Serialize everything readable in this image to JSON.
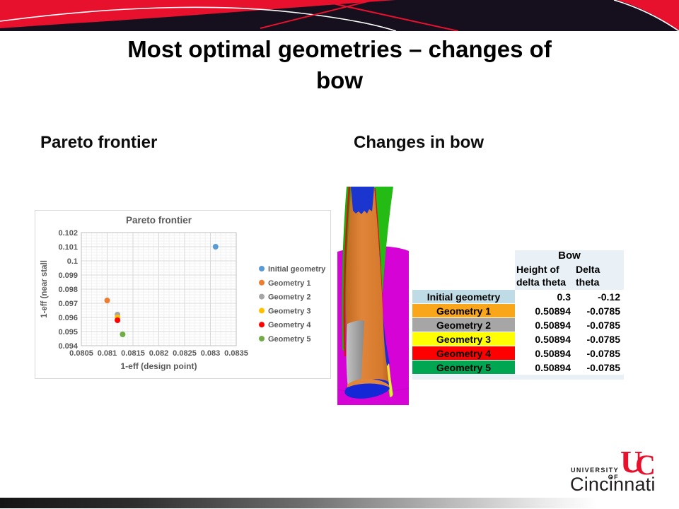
{
  "slide": {
    "title_lines": [
      "Most optimal geometries – changes of",
      "bow"
    ],
    "left_heading": "Pareto frontier",
    "right_heading": "Changes in bow"
  },
  "colors": {
    "banner_red": "#e8112d",
    "banner_black": "#16101e",
    "table_header_blue": "#e9f1f7",
    "magenta_background": "#d503d5",
    "blade_orange": "#dd7f2e"
  },
  "chart_data": {
    "type": "scatter",
    "title": "Pareto frontier",
    "xlabel": "1-eff (design point)",
    "ylabel": "1-eff (near stall",
    "xlim": [
      0.0805,
      0.0835
    ],
    "ylim": [
      0.094,
      0.102
    ],
    "x_ticks": [
      "0.0805",
      "0.081",
      "0.0815",
      "0.082",
      "0.0825",
      "0.083",
      "0.0835"
    ],
    "y_ticks": [
      "0.094",
      "0.095",
      "0.096",
      "0.097",
      "0.098",
      "0.099",
      "0.1",
      "0.101",
      "0.102"
    ],
    "x_minor_step": 0.0001,
    "y_minor_step": 0.0002,
    "grid": true,
    "legend_position": "right",
    "series": [
      {
        "name": "Initial geometry",
        "color": "#5b9bd5",
        "points": [
          [
            0.0831,
            0.101
          ]
        ]
      },
      {
        "name": "Geometry 1",
        "color": "#ed7d31",
        "points": [
          [
            0.081,
            0.0972
          ]
        ]
      },
      {
        "name": "Geometry 2",
        "color": "#a5a5a5",
        "points": [
          [
            0.0812,
            0.0962
          ]
        ]
      },
      {
        "name": "Geometry 3",
        "color": "#ffc000",
        "points": [
          [
            0.0812,
            0.096
          ]
        ]
      },
      {
        "name": "Geometry 4",
        "color": "#ff0000",
        "points": [
          [
            0.0812,
            0.0958
          ]
        ]
      },
      {
        "name": "Geometry 5",
        "color": "#70ad47",
        "points": [
          [
            0.0813,
            0.0948
          ]
        ]
      }
    ]
  },
  "table": {
    "group_header": "Bow",
    "col_headers": [
      "Height of delta theta",
      "Delta theta"
    ],
    "rows": [
      {
        "label": "Initial geometry",
        "values": [
          "0.3",
          "-0.12"
        ],
        "color": "#bfdbe5"
      },
      {
        "label": "Geometry 1",
        "values": [
          "0.50894",
          "-0.0785"
        ],
        "color": "#faa61a"
      },
      {
        "label": "Geometry 2",
        "values": [
          "0.50894",
          "-0.0785"
        ],
        "color": "#a6a6a6"
      },
      {
        "label": "Geometry 3",
        "values": [
          "0.50894",
          "-0.0785"
        ],
        "color": "#ffff00"
      },
      {
        "label": "Geometry 4",
        "values": [
          "0.50894",
          "-0.0785"
        ],
        "color": "#ff0000"
      },
      {
        "label": "Geometry 5",
        "values": [
          "0.50894",
          "-0.0785"
        ],
        "color": "#00a651"
      }
    ]
  },
  "logo": {
    "line1": "UNIVERSITY OF",
    "line2": "Cincinnati",
    "monogram": "UC"
  }
}
